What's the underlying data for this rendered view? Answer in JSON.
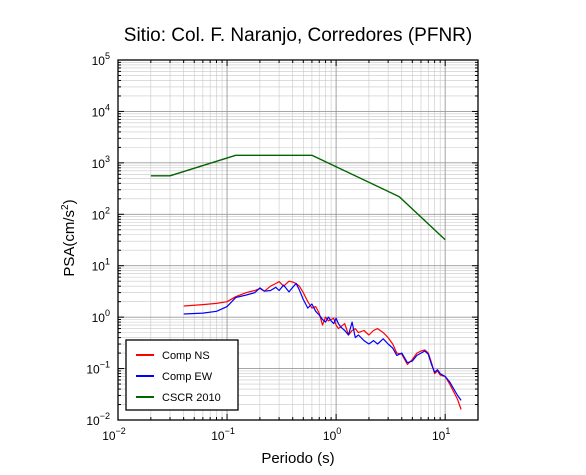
{
  "chart_data": {
    "type": "line",
    "title": "Sitio: Col. F. Naranjo, Corredores (PFNR)",
    "xlabel": "Periodo (s)",
    "ylabel_prefix": "PSA(cm/s",
    "ylabel_sup": "2",
    "ylabel_suffix": ")",
    "x_scale": "log",
    "y_scale": "log",
    "xlim": [
      0.01,
      20
    ],
    "ylim": [
      0.01,
      100000
    ],
    "grid": true,
    "legend_position": "bottom-left",
    "x_ticks": [
      {
        "value": 0.01,
        "base": "10",
        "exp": "−2"
      },
      {
        "value": 0.1,
        "base": "10",
        "exp": "−1"
      },
      {
        "value": 1,
        "base": "10",
        "exp": "0"
      },
      {
        "value": 10,
        "base": "10",
        "exp": "1"
      }
    ],
    "y_ticks": [
      {
        "value": 0.01,
        "base": "10",
        "exp": "−2"
      },
      {
        "value": 0.1,
        "base": "10",
        "exp": "−1"
      },
      {
        "value": 1,
        "base": "10",
        "exp": "0"
      },
      {
        "value": 10,
        "base": "10",
        "exp": "1"
      },
      {
        "value": 100,
        "base": "10",
        "exp": "2"
      },
      {
        "value": 1000,
        "base": "10",
        "exp": "3"
      },
      {
        "value": 10000,
        "base": "10",
        "exp": "4"
      },
      {
        "value": 100000,
        "base": "10",
        "exp": "5"
      }
    ],
    "series": [
      {
        "name": "Comp NS",
        "color": "#ff0000",
        "x": [
          0.04,
          0.06,
          0.08,
          0.1,
          0.12,
          0.15,
          0.18,
          0.2,
          0.22,
          0.25,
          0.28,
          0.3,
          0.33,
          0.37,
          0.4,
          0.43,
          0.46,
          0.5,
          0.55,
          0.6,
          0.65,
          0.7,
          0.75,
          0.8,
          0.85,
          0.9,
          0.95,
          1.0,
          1.05,
          1.1,
          1.2,
          1.3,
          1.4,
          1.5,
          1.6,
          1.8,
          2.0,
          2.2,
          2.4,
          2.7,
          3.0,
          3.3,
          3.6,
          4.0,
          4.5,
          5.0,
          5.5,
          6.0,
          6.5,
          7.0,
          7.5,
          8.0,
          8.5,
          9.0,
          10.0,
          11.0,
          12.0,
          13.0,
          14.0
        ],
        "y": [
          1.65,
          1.75,
          1.85,
          2.0,
          2.5,
          3.0,
          3.3,
          3.6,
          3.2,
          4.0,
          4.5,
          4.9,
          4.0,
          5.0,
          4.8,
          4.5,
          4.0,
          3.0,
          2.0,
          1.5,
          1.6,
          1.2,
          0.7,
          1.0,
          0.85,
          0.9,
          0.95,
          0.7,
          0.6,
          0.65,
          0.75,
          0.45,
          0.55,
          0.6,
          0.5,
          0.55,
          0.45,
          0.55,
          0.6,
          0.5,
          0.4,
          0.3,
          0.2,
          0.19,
          0.12,
          0.15,
          0.2,
          0.22,
          0.23,
          0.2,
          0.13,
          0.08,
          0.09,
          0.075,
          0.07,
          0.05,
          0.035,
          0.025,
          0.016
        ]
      },
      {
        "name": "Comp EW",
        "color": "#0000ff",
        "x": [
          0.04,
          0.06,
          0.08,
          0.1,
          0.12,
          0.15,
          0.18,
          0.2,
          0.22,
          0.25,
          0.28,
          0.3,
          0.33,
          0.37,
          0.4,
          0.43,
          0.46,
          0.5,
          0.55,
          0.6,
          0.65,
          0.7,
          0.75,
          0.8,
          0.85,
          0.9,
          0.95,
          1.0,
          1.05,
          1.1,
          1.2,
          1.3,
          1.4,
          1.5,
          1.6,
          1.8,
          2.0,
          2.2,
          2.4,
          2.7,
          3.0,
          3.3,
          3.6,
          4.0,
          4.5,
          5.0,
          5.5,
          6.0,
          6.5,
          7.0,
          7.5,
          8.0,
          8.5,
          9.0,
          10.0,
          11.0,
          12.0,
          13.0,
          14.0
        ],
        "y": [
          1.15,
          1.2,
          1.3,
          1.6,
          2.4,
          2.7,
          3.0,
          3.7,
          3.2,
          3.3,
          3.8,
          3.3,
          4.2,
          3.1,
          3.8,
          4.5,
          3.4,
          2.2,
          1.5,
          1.8,
          1.3,
          1.1,
          0.9,
          0.8,
          1.0,
          0.85,
          0.75,
          0.95,
          0.75,
          0.65,
          0.55,
          0.45,
          0.8,
          0.4,
          0.45,
          0.35,
          0.3,
          0.35,
          0.3,
          0.38,
          0.3,
          0.25,
          0.18,
          0.2,
          0.13,
          0.14,
          0.18,
          0.2,
          0.22,
          0.19,
          0.12,
          0.085,
          0.095,
          0.08,
          0.07,
          0.055,
          0.04,
          0.03,
          0.024
        ]
      },
      {
        "name": "CSCR 2010",
        "color": "#006400",
        "x": [
          0.02,
          0.03,
          0.12,
          0.6,
          3.8,
          10.0
        ],
        "y": [
          560,
          560,
          1400,
          1400,
          220,
          32
        ]
      }
    ]
  }
}
